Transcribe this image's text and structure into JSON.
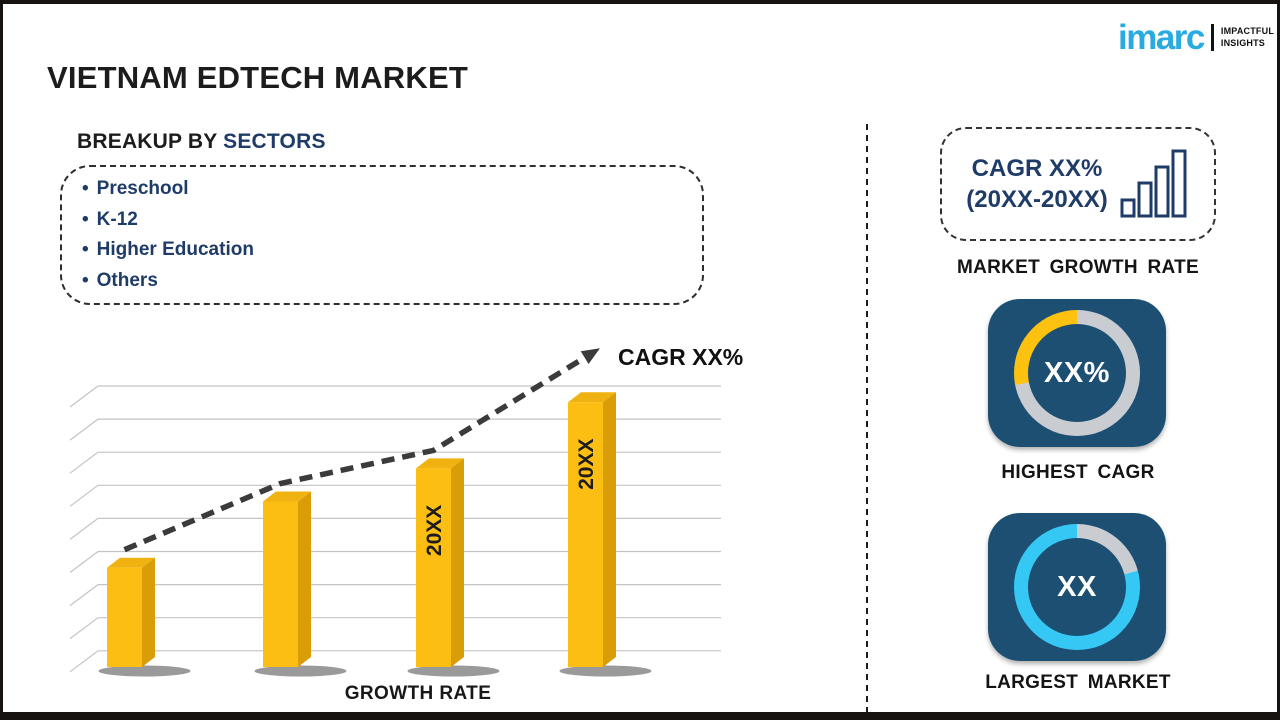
{
  "page": {
    "title": "VIETNAM EDTECH MARKET"
  },
  "logo": {
    "brand": "imarc",
    "tagline_line1": "IMPACTFUL",
    "tagline_line2": "INSIGHTS",
    "brand_color": "#29abe2"
  },
  "breakup": {
    "heading_prefix": "BREAKUP BY ",
    "heading_highlight": "SECTORS",
    "bullet": "•",
    "items": [
      "Preschool",
      "K-12",
      "Higher Education",
      "Others"
    ]
  },
  "chart_data": {
    "type": "bar",
    "title": "",
    "categories": [
      "",
      "",
      "20XX",
      "20XX"
    ],
    "values": [
      3,
      5,
      6,
      8
    ],
    "value_scale": "gridline-steps (no numeric axis shown; placeholder years)",
    "xlabel": "GROWTH RATE",
    "ylabel": "",
    "grid": true,
    "gridline_count": 9,
    "trend_label": "CAGR XX%",
    "bar_color": "#fcbe12",
    "bar_side_color": "#d89d07",
    "bar_top_color": "#f0b211",
    "trend_color": "#3b3b3b"
  },
  "sidebar": {
    "growth_card": {
      "line1": "CAGR XX%",
      "line2": "(20XX-20XX)",
      "caption": "MARKET GROWTH RATE"
    },
    "highest_cagr": {
      "value": "XX%",
      "caption": "HIGHEST CAGR",
      "ring": {
        "segments": [
          {
            "color": "#c9cdd2",
            "from": 0,
            "to": 259
          },
          {
            "color": "#fdc20f",
            "from": 259,
            "to": 360
          }
        ]
      }
    },
    "largest_market": {
      "value": "XX",
      "caption": "LARGEST MARKET",
      "ring": {
        "segments": [
          {
            "color": "#c9cdd2",
            "from": 0,
            "to": 75
          },
          {
            "color": "#35c8f5",
            "from": 75,
            "to": 360
          }
        ]
      }
    }
  },
  "colors": {
    "navy_text": "#1f3c68",
    "card_blue": "#1d4f73",
    "accent_yellow": "#fdc20f",
    "accent_cyan": "#35c8f5",
    "frame": "#171310"
  }
}
